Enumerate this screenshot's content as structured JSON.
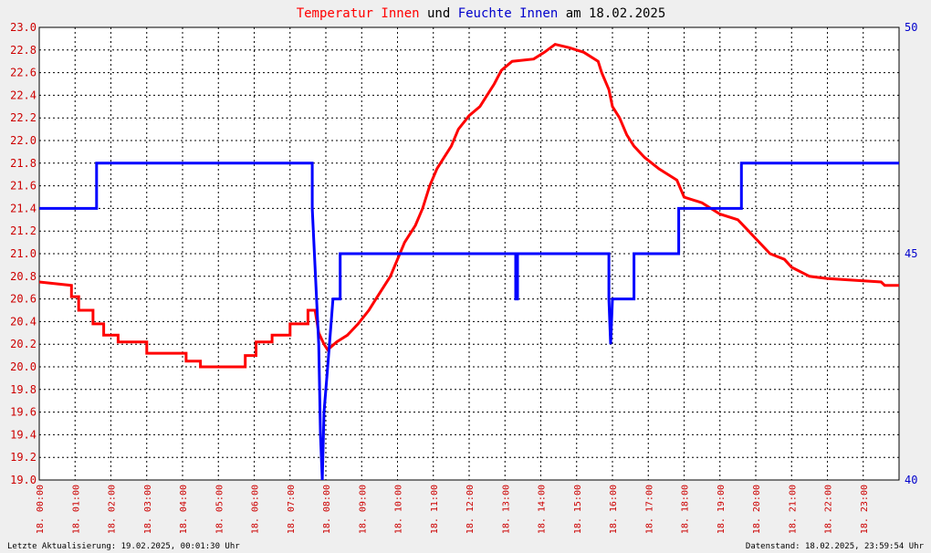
{
  "chart_data": {
    "type": "line",
    "title_parts": [
      {
        "text": "Temperatur Innen",
        "color": "#ff0000"
      },
      {
        "text": " und ",
        "color": "#000000"
      },
      {
        "text": "Feuchte Innen",
        "color": "#0000cc"
      },
      {
        "text": " am 18.02.2025",
        "color": "#000000"
      }
    ],
    "x_range": [
      0,
      24
    ],
    "x_ticks": [
      "18. 00:00",
      "18. 01:00",
      "18. 02:00",
      "18. 03:00",
      "18. 04:00",
      "18. 05:00",
      "18. 06:00",
      "18. 07:00",
      "18. 08:00",
      "18. 09:00",
      "18. 10:00",
      "18. 11:00",
      "18. 12:00",
      "18. 13:00",
      "18. 14:00",
      "18. 15:00",
      "18. 16:00",
      "18. 17:00",
      "18. 18:00",
      "18. 19:00",
      "18. 20:00",
      "18. 21:00",
      "18. 22:00",
      "18. 23:00"
    ],
    "y_left": {
      "min": 19.0,
      "max": 23.0,
      "ticks": [
        "19.0",
        "19.2",
        "19.4",
        "19.6",
        "19.8",
        "20.0",
        "20.2",
        "20.4",
        "20.6",
        "20.8",
        "21.0",
        "21.2",
        "21.4",
        "21.6",
        "21.8",
        "22.0",
        "22.2",
        "22.4",
        "22.6",
        "22.8",
        "23.0"
      ],
      "color": "#cc0000"
    },
    "y_right": {
      "min": 40,
      "max": 50,
      "ticks": [
        "40",
        "45",
        "50"
      ],
      "color": "#0000cc"
    },
    "grid": true,
    "series": [
      {
        "name": "Temperatur Innen",
        "axis": "left",
        "color": "#ff0000",
        "points": [
          [
            0,
            20.75
          ],
          [
            0.9,
            20.72
          ],
          [
            0.9,
            20.62
          ],
          [
            1.1,
            20.62
          ],
          [
            1.1,
            20.5
          ],
          [
            1.5,
            20.5
          ],
          [
            1.5,
            20.38
          ],
          [
            1.8,
            20.38
          ],
          [
            1.8,
            20.28
          ],
          [
            2.2,
            20.28
          ],
          [
            2.2,
            20.22
          ],
          [
            3.0,
            20.22
          ],
          [
            3.0,
            20.12
          ],
          [
            4.1,
            20.12
          ],
          [
            4.1,
            20.05
          ],
          [
            4.5,
            20.05
          ],
          [
            4.5,
            20.0
          ],
          [
            5.75,
            20.0
          ],
          [
            5.75,
            20.1
          ],
          [
            6.05,
            20.1
          ],
          [
            6.05,
            20.22
          ],
          [
            6.5,
            20.22
          ],
          [
            6.5,
            20.28
          ],
          [
            7.0,
            20.28
          ],
          [
            7.0,
            20.38
          ],
          [
            7.5,
            20.38
          ],
          [
            7.5,
            20.5
          ],
          [
            7.7,
            20.5
          ],
          [
            7.8,
            20.3
          ],
          [
            7.95,
            20.2
          ],
          [
            8.05,
            20.15
          ],
          [
            8.3,
            20.22
          ],
          [
            8.6,
            20.28
          ],
          [
            8.9,
            20.38
          ],
          [
            9.2,
            20.5
          ],
          [
            9.4,
            20.6
          ],
          [
            9.6,
            20.7
          ],
          [
            9.8,
            20.8
          ],
          [
            10.0,
            20.95
          ],
          [
            10.2,
            21.1
          ],
          [
            10.5,
            21.25
          ],
          [
            10.7,
            21.4
          ],
          [
            10.9,
            21.6
          ],
          [
            11.1,
            21.75
          ],
          [
            11.3,
            21.85
          ],
          [
            11.5,
            21.95
          ],
          [
            11.7,
            22.1
          ],
          [
            12.0,
            22.22
          ],
          [
            12.3,
            22.3
          ],
          [
            12.5,
            22.4
          ],
          [
            12.7,
            22.5
          ],
          [
            12.9,
            22.62
          ],
          [
            13.2,
            22.7
          ],
          [
            13.8,
            22.72
          ],
          [
            14.1,
            22.78
          ],
          [
            14.4,
            22.85
          ],
          [
            14.8,
            22.82
          ],
          [
            15.2,
            22.78
          ],
          [
            15.6,
            22.7
          ],
          [
            15.7,
            22.6
          ],
          [
            15.9,
            22.45
          ],
          [
            16.0,
            22.3
          ],
          [
            16.2,
            22.2
          ],
          [
            16.4,
            22.05
          ],
          [
            16.6,
            21.95
          ],
          [
            16.9,
            21.85
          ],
          [
            17.3,
            21.75
          ],
          [
            17.8,
            21.65
          ],
          [
            18.0,
            21.5
          ],
          [
            18.5,
            21.45
          ],
          [
            19.0,
            21.35
          ],
          [
            19.5,
            21.3
          ],
          [
            19.8,
            21.2
          ],
          [
            20.1,
            21.1
          ],
          [
            20.4,
            21.0
          ],
          [
            20.8,
            20.95
          ],
          [
            21.0,
            20.88
          ],
          [
            21.5,
            20.8
          ],
          [
            22.0,
            20.78
          ],
          [
            23.5,
            20.75
          ],
          [
            23.6,
            20.72
          ],
          [
            24,
            20.72
          ]
        ]
      },
      {
        "name": "Feuchte Innen",
        "axis": "right",
        "color": "#0000ff",
        "points": [
          [
            0,
            46
          ],
          [
            1.6,
            46
          ],
          [
            1.6,
            47
          ],
          [
            7.62,
            47
          ],
          [
            7.62,
            46
          ],
          [
            7.8,
            43
          ],
          [
            7.85,
            41
          ],
          [
            7.9,
            40
          ],
          [
            7.95,
            41.5
          ],
          [
            8.05,
            42.5
          ],
          [
            8.15,
            43.5
          ],
          [
            8.2,
            44
          ],
          [
            8.4,
            44
          ],
          [
            8.4,
            45
          ],
          [
            13.3,
            45
          ],
          [
            13.3,
            44
          ],
          [
            13.35,
            44
          ],
          [
            13.35,
            45
          ],
          [
            15.9,
            45
          ],
          [
            15.9,
            44
          ],
          [
            15.95,
            43
          ],
          [
            16.0,
            44
          ],
          [
            16.6,
            44
          ],
          [
            16.6,
            45
          ],
          [
            17.85,
            45
          ],
          [
            17.85,
            46
          ],
          [
            19.6,
            46
          ],
          [
            19.6,
            47
          ],
          [
            24,
            47
          ]
        ]
      }
    ],
    "footer_left": "Letzte Aktualisierung: 19.02.2025, 00:01:30 Uhr",
    "footer_right": "Datenstand: 18.02.2025, 23:59:54 Uhr"
  }
}
